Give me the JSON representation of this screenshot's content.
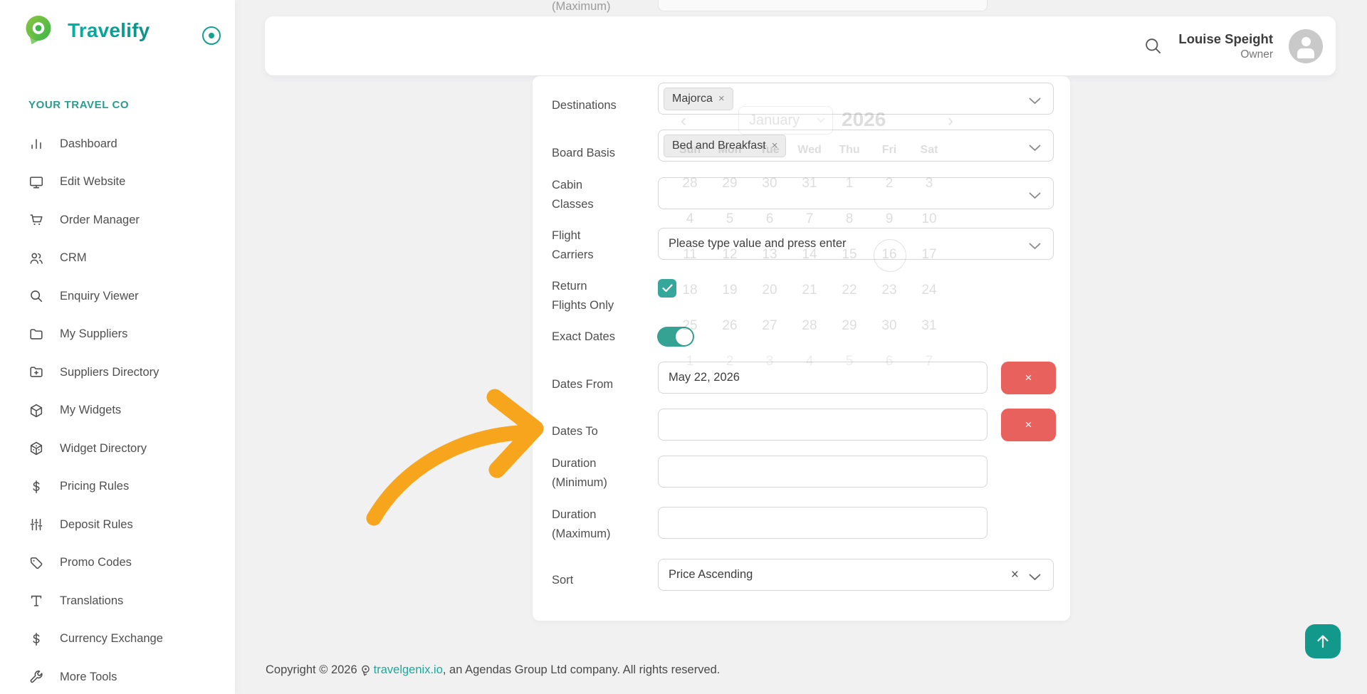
{
  "sidebar": {
    "logo_text": "Travelify",
    "section_label": "YOUR TRAVEL CO",
    "items": [
      {
        "label": "Dashboard",
        "icon": "bar-chart-icon"
      },
      {
        "label": "Edit Website",
        "icon": "monitor-icon"
      },
      {
        "label": "Order Manager",
        "icon": "cart-icon"
      },
      {
        "label": "CRM",
        "icon": "users-icon"
      },
      {
        "label": "Enquiry Viewer",
        "icon": "magnifier-icon"
      },
      {
        "label": "My Suppliers",
        "icon": "folder-icon"
      },
      {
        "label": "Suppliers Directory",
        "icon": "folder-plus-icon"
      },
      {
        "label": "My Widgets",
        "icon": "cube-icon"
      },
      {
        "label": "Widget Directory",
        "icon": "cube-dots-icon"
      },
      {
        "label": "Pricing Rules",
        "icon": "dollar-icon"
      },
      {
        "label": "Deposit Rules",
        "icon": "sliders-icon"
      },
      {
        "label": "Promo Codes",
        "icon": "tag-icon"
      },
      {
        "label": "Translations",
        "icon": "text-icon"
      },
      {
        "label": "Currency Exchange",
        "icon": "dollar-icon"
      },
      {
        "label": "More Tools",
        "icon": "wrench-icon"
      }
    ]
  },
  "header": {
    "user_name": "Louise Speight",
    "user_role": "Owner"
  },
  "scrolled_remnant": {
    "label": "(Maximum)"
  },
  "form": {
    "destinations": {
      "label": [
        "Destinations"
      ],
      "tag": "Majorca"
    },
    "board_basis": {
      "label": [
        "Board Basis"
      ],
      "tag": "Bed and Breakfast"
    },
    "cabin_classes": {
      "label": [
        "Cabin",
        "Classes"
      ],
      "value": ""
    },
    "flight_carriers": {
      "label": [
        "Flight",
        "Carriers"
      ],
      "placeholder": "Please type value and press enter"
    },
    "return_flights_only": {
      "label": [
        "Return",
        "Flights Only"
      ],
      "checked": true
    },
    "exact_dates": {
      "label": [
        "Exact Dates"
      ],
      "on": true
    },
    "dates_from": {
      "label": [
        "Dates From"
      ],
      "value": "May 22, 2026",
      "clear_label": "×"
    },
    "dates_to": {
      "label": [
        "Dates To"
      ],
      "value": "",
      "clear_label": "×"
    },
    "duration_min": {
      "label": [
        "Duration",
        "(Minimum)"
      ],
      "value": ""
    },
    "duration_max": {
      "label": [
        "Duration",
        "(Maximum)"
      ],
      "value": ""
    },
    "sort": {
      "label": [
        "Sort"
      ],
      "value": "Price Ascending",
      "clear_label": "×"
    }
  },
  "calendar": {
    "prev": "‹",
    "next": "›",
    "month": "January",
    "year": "2026",
    "day_names": [
      "Sun",
      "Mon",
      "Tue",
      "Wed",
      "Thu",
      "Fri",
      "Sat"
    ],
    "weeks": [
      [
        "28",
        "29",
        "30",
        "31",
        "1",
        "2",
        "3"
      ],
      [
        "4",
        "5",
        "6",
        "7",
        "8",
        "9",
        "10"
      ],
      [
        "11",
        "12",
        "13",
        "14",
        "15",
        "16",
        "17"
      ],
      [
        "18",
        "19",
        "20",
        "21",
        "22",
        "23",
        "24"
      ],
      [
        "25",
        "26",
        "27",
        "28",
        "29",
        "30",
        "31"
      ],
      [
        "1",
        "2",
        "3",
        "4",
        "5",
        "6",
        "7"
      ]
    ],
    "circled": {
      "row": 2,
      "col": 5,
      "day": "16"
    }
  },
  "footer": {
    "prefix": "Copyright © 2026",
    "link": "travelgenix.io",
    "suffix": ", an Agendas Group Ltd company. All rights reserved."
  },
  "colors": {
    "accent_teal": "#2a9d8f",
    "control_teal": "#35a79b",
    "scroll_button_teal": "#13998b",
    "danger_red": "#e8615c",
    "annotation_orange": "#f8a51e",
    "background": "#f1f1f2",
    "link_teal": "#1aa99c"
  }
}
